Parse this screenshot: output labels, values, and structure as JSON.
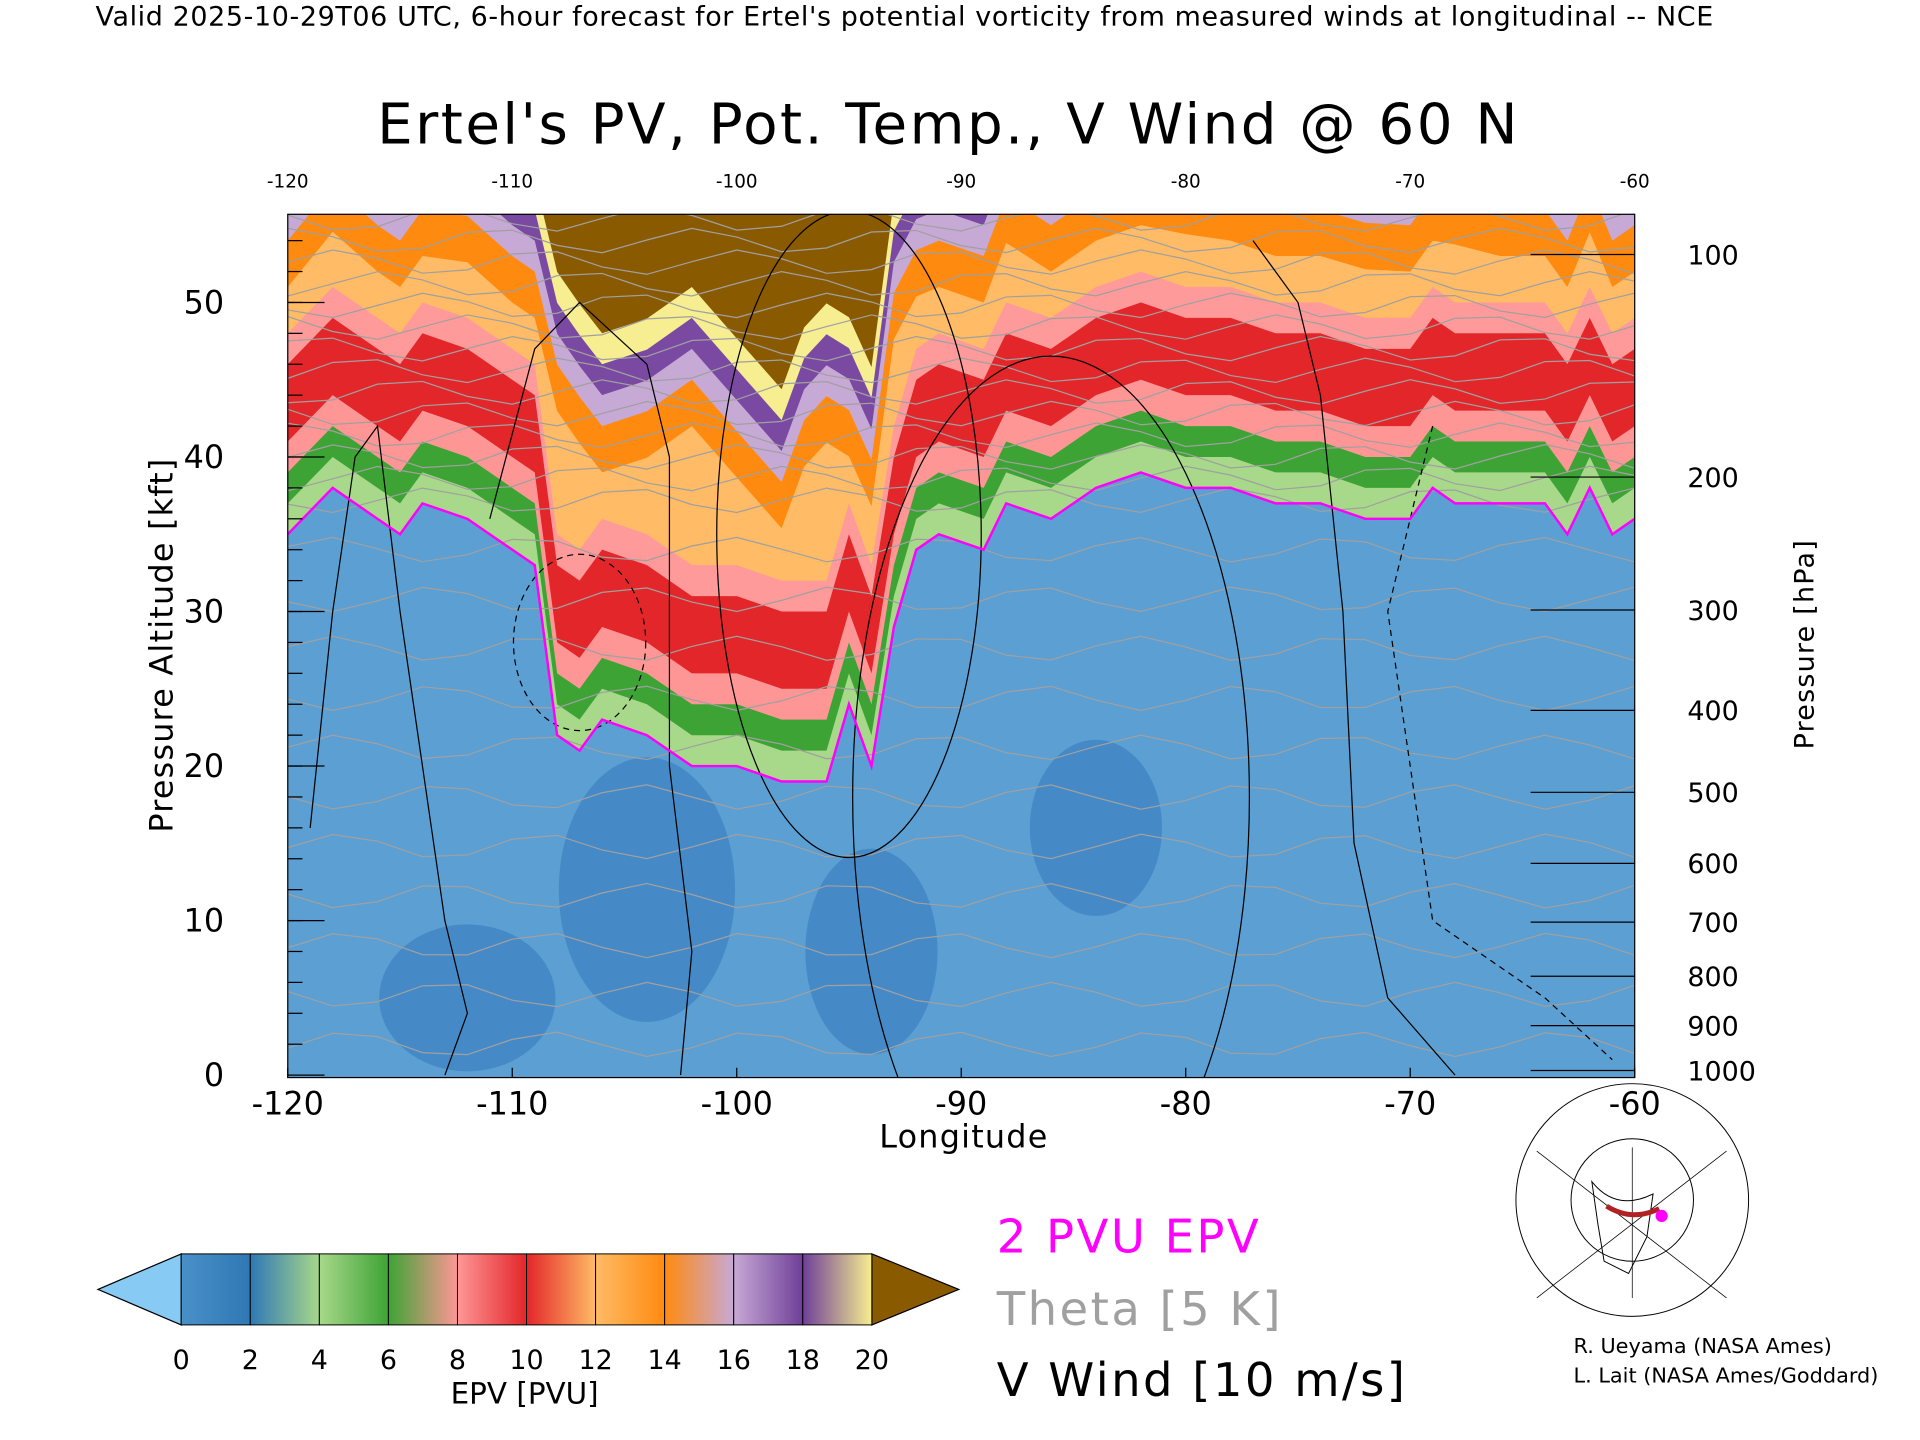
{
  "header": {
    "valid_line": "Valid 2025-10-29T06 UTC, 6-hour forecast for Ertel's potential vorticity from measured winds at longitudinal -- NCE",
    "title": "Ertel's PV, Pot. Temp., V Wind @ 60 N"
  },
  "chart_data": {
    "type": "heatmap",
    "title": "Ertel's PV, Pot. Temp., V Wind @ 60 N",
    "xlabel": "Longitude",
    "ylabel": "Pressure Altitude [kft]",
    "y2label": "Pressure [hPa]",
    "xlim": [
      -120,
      -60
    ],
    "ylim": [
      0,
      56
    ],
    "x_ticks": [
      "-120",
      "-110",
      "-100",
      "-90",
      "-80",
      "-70",
      "-60"
    ],
    "x_ticks_top": [
      "-120",
      "-110",
      "-100",
      "-90",
      "-80",
      "-70",
      "-60"
    ],
    "y_ticks": [
      "0",
      "10",
      "20",
      "30",
      "40",
      "50"
    ],
    "y2_ticks": [
      {
        "label": "100",
        "kft": 53.1
      },
      {
        "label": "200",
        "kft": 38.7
      },
      {
        "label": "300",
        "kft": 30.1
      },
      {
        "label": "400",
        "kft": 23.6
      },
      {
        "label": "500",
        "kft": 18.3
      },
      {
        "label": "600",
        "kft": 13.7
      },
      {
        "label": "700",
        "kft": 9.9
      },
      {
        "label": "800",
        "kft": 6.4
      },
      {
        "label": "900",
        "kft": 3.2
      },
      {
        "label": "1000",
        "kft": 0.3
      }
    ],
    "tropopause_2pvu": {
      "lon": [
        -120,
        -118,
        -116,
        -115,
        -114,
        -112,
        -110,
        -109,
        -108,
        -107,
        -106,
        -104,
        -102,
        -100,
        -98,
        -97,
        -96,
        -95,
        -94,
        -93,
        -92,
        -91,
        -89,
        -88,
        -86,
        -84,
        -82,
        -80,
        -78,
        -76,
        -74,
        -72,
        -70,
        -69,
        -68,
        -66,
        -64,
        -63,
        -62,
        -61,
        -60
      ],
      "kft": [
        35,
        38,
        36,
        35,
        37,
        36,
        34,
        33,
        22,
        21,
        23,
        22,
        20,
        20,
        19,
        19,
        19,
        24,
        20,
        29,
        34,
        35,
        34,
        37,
        36,
        38,
        39,
        38,
        38,
        37,
        37,
        36,
        36,
        38,
        37,
        37,
        37,
        35,
        38,
        35,
        36
      ]
    },
    "colorbar": {
      "label": "EPV [PVU]",
      "ticks": [
        "0",
        "2",
        "4",
        "6",
        "8",
        "10",
        "12",
        "14",
        "16",
        "18",
        "20"
      ],
      "colors": [
        "#4a90c8",
        "#2f78b5",
        "#a8d88a",
        "#3ea335",
        "#ff9696",
        "#e3262a",
        "#ffbb66",
        "#ff8a10",
        "#c7a9d6",
        "#6f3f98",
        "#f6ee90",
        "#8a5a00"
      ],
      "under_color": "#87cbf5",
      "over_color": "#8a5a00"
    },
    "theta_contour_interval": "5 K",
    "wind_contour_interval": "10 m/s",
    "wind_zero_contours": [
      {
        "lon": [
          -119,
          -118,
          -117,
          -116,
          -115,
          -114,
          -113,
          -112,
          -113
        ],
        "kft": [
          16,
          30,
          40,
          42,
          30,
          20,
          10,
          4,
          0
        ]
      },
      {
        "lon": [
          -111,
          -109,
          -107,
          -104,
          -103,
          -103,
          -102,
          -102.5
        ],
        "kft": [
          36,
          47,
          50,
          46,
          40,
          20,
          8,
          0
        ]
      },
      {
        "lon": [
          -77,
          -75,
          -74,
          -73,
          -72.5,
          -71,
          -68
        ],
        "kft": [
          54,
          50,
          44,
          30,
          15,
          5,
          0
        ]
      }
    ]
  },
  "legend": {
    "pv_line": "2 PVU EPV",
    "theta": "Theta [5 K]",
    "wind": "V Wind [10 m/s]",
    "pv_color": "#ff00ff",
    "theta_color": "#a0a0a0"
  },
  "credits": {
    "line1": "R. Ueyama (NASA Ames)",
    "line2": "L. Lait (NASA Ames/Goddard)"
  },
  "inset_map": {
    "path_color": "#b22222",
    "marker_color": "#ff00ff"
  }
}
